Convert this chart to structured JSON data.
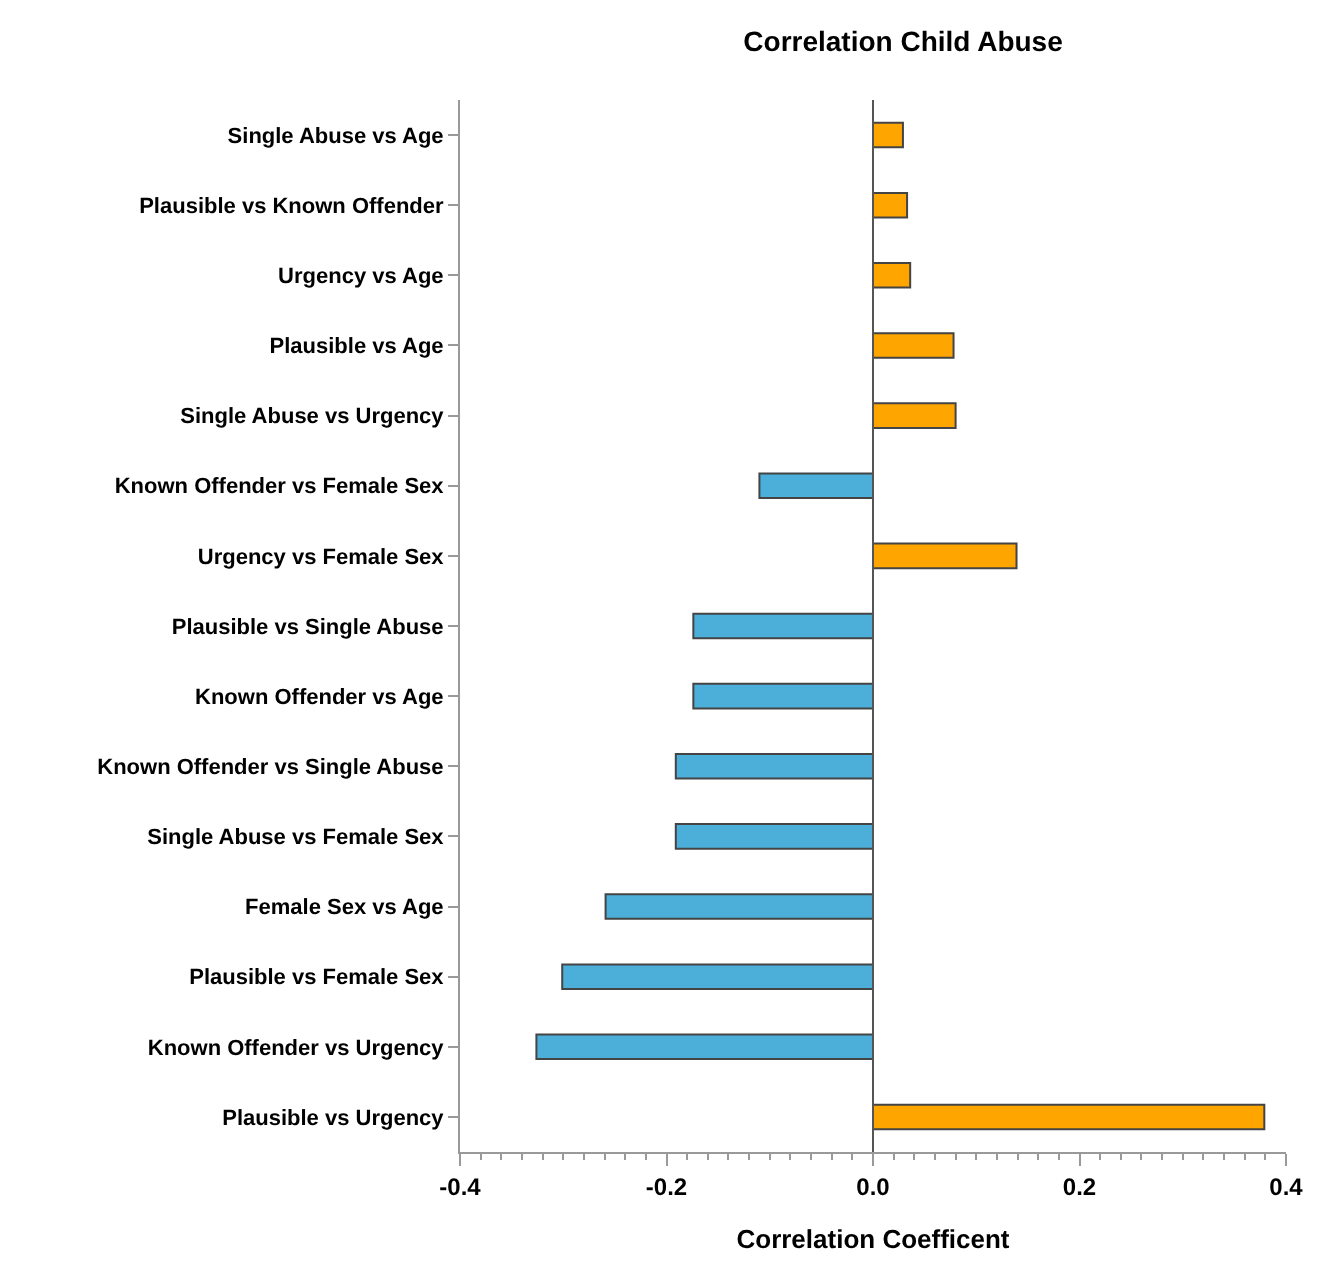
{
  "chart_data": {
    "type": "bar",
    "orientation": "horizontal",
    "title": "Correlation Child Abuse",
    "xlabel": "Correlation Coefficent",
    "categories": [
      "Single Abuse vs Age",
      "Plausible vs Known Offender",
      "Urgency vs Age",
      "Plausible vs Age",
      "Single Abuse vs Urgency",
      "Known Offender vs Female Sex",
      "Urgency vs Female Sex",
      "Plausible vs Single Abuse",
      "Known Offender vs Age",
      "Known Offender vs Single Abuse",
      "Single Abuse vs Female Sex",
      "Female Sex vs Age",
      "Plausible vs Female Sex",
      "Known Offender vs Urgency",
      "Plausible vs Urgency"
    ],
    "values": [
      0.029,
      0.033,
      0.036,
      0.078,
      0.08,
      -0.11,
      0.139,
      -0.174,
      -0.174,
      -0.191,
      -0.191,
      -0.259,
      -0.301,
      -0.326,
      0.379
    ],
    "colors": [
      "#ffa500",
      "#ffa500",
      "#ffa500",
      "#ffa500",
      "#ffa500",
      "#4bafd9",
      "#ffa500",
      "#4bafd9",
      "#4bafd9",
      "#4bafd9",
      "#4bafd9",
      "#4bafd9",
      "#4bafd9",
      "#4bafd9",
      "#ffa500"
    ],
    "xlim": [
      -0.4,
      0.4
    ],
    "xticks": [
      -0.4,
      -0.2,
      {
        "value": 0,
        "label": "0.0"
      },
      0.2,
      0.4
    ],
    "ref_lines": [
      {
        "axis": "x",
        "value": 0,
        "color": "#555555"
      }
    ]
  }
}
